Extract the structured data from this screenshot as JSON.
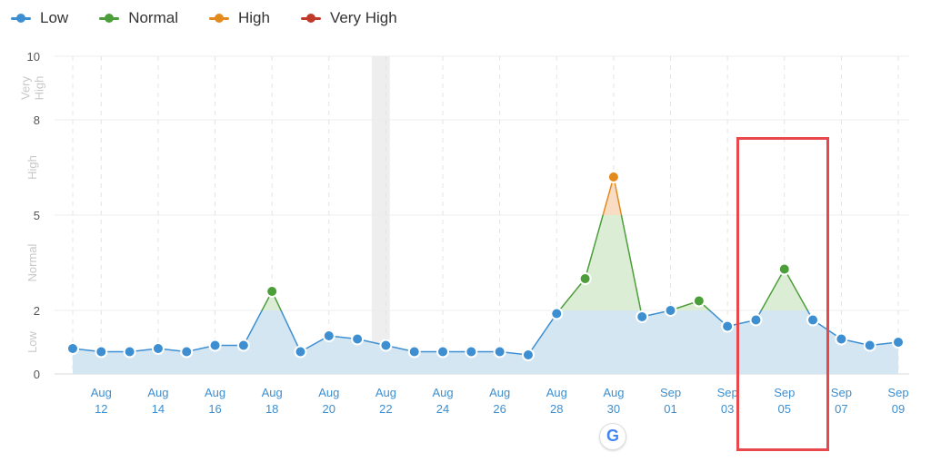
{
  "legend": {
    "items": [
      {
        "label": "Low",
        "color": "#3d8fd1"
      },
      {
        "label": "Normal",
        "color": "#4c9e3a"
      },
      {
        "label": "High",
        "color": "#e38a1c"
      },
      {
        "label": "Very High",
        "color": "#c0392b"
      }
    ]
  },
  "zones": [
    "Low",
    "Normal",
    "High",
    "Very High"
  ],
  "google_icon": "google-icon",
  "chart_data": {
    "type": "line",
    "yticks": [
      0,
      2,
      5,
      8,
      10
    ],
    "ylim": [
      0,
      10
    ],
    "xlim": [
      "2023-08-11",
      "2023-09-09"
    ],
    "xticks": [
      {
        "date": "2023-08-12",
        "month": "Aug",
        "day": "12"
      },
      {
        "date": "2023-08-14",
        "month": "Aug",
        "day": "14"
      },
      {
        "date": "2023-08-16",
        "month": "Aug",
        "day": "16"
      },
      {
        "date": "2023-08-18",
        "month": "Aug",
        "day": "18"
      },
      {
        "date": "2023-08-20",
        "month": "Aug",
        "day": "20"
      },
      {
        "date": "2023-08-22",
        "month": "Aug",
        "day": "22"
      },
      {
        "date": "2023-08-24",
        "month": "Aug",
        "day": "24"
      },
      {
        "date": "2023-08-26",
        "month": "Aug",
        "day": "26"
      },
      {
        "date": "2023-08-28",
        "month": "Aug",
        "day": "28"
      },
      {
        "date": "2023-08-30",
        "month": "Aug",
        "day": "30"
      },
      {
        "date": "2023-09-01",
        "month": "Sep",
        "day": "01"
      },
      {
        "date": "2023-09-03",
        "month": "Sep",
        "day": "03"
      },
      {
        "date": "2023-09-05",
        "month": "Sep",
        "day": "05"
      },
      {
        "date": "2023-09-07",
        "month": "Sep",
        "day": "07"
      },
      {
        "date": "2023-09-09",
        "month": "Sep",
        "day": "09"
      }
    ],
    "x": [
      "2023-08-11",
      "2023-08-12",
      "2023-08-13",
      "2023-08-14",
      "2023-08-15",
      "2023-08-16",
      "2023-08-17",
      "2023-08-18",
      "2023-08-19",
      "2023-08-20",
      "2023-08-21",
      "2023-08-22",
      "2023-08-23",
      "2023-08-24",
      "2023-08-25",
      "2023-08-26",
      "2023-08-27",
      "2023-08-28",
      "2023-08-29",
      "2023-08-30",
      "2023-08-31",
      "2023-09-01",
      "2023-09-02",
      "2023-09-03",
      "2023-09-04",
      "2023-09-05",
      "2023-09-06",
      "2023-09-07",
      "2023-09-08",
      "2023-09-09"
    ],
    "values": [
      0.8,
      0.7,
      0.7,
      0.8,
      0.7,
      0.9,
      0.9,
      2.6,
      0.7,
      1.2,
      1.1,
      0.9,
      0.7,
      0.7,
      0.7,
      0.7,
      0.6,
      1.9,
      3.0,
      6.2,
      1.8,
      2.0,
      2.3,
      1.5,
      1.7,
      3.3,
      1.7,
      1.1,
      0.9,
      1.0
    ],
    "zone_thresholds": {
      "low_max": 2,
      "normal_max": 5,
      "high_max": 8,
      "very_high_max": 10
    },
    "highlight_band": [
      "2023-08-21",
      "2023-08-22"
    ],
    "grid": true
  }
}
